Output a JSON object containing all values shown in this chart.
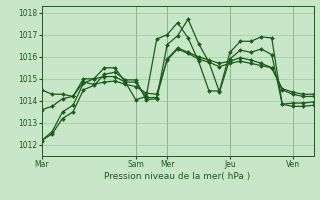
{
  "bg_color": "#c8e6c8",
  "grid_color": "#a0c8a0",
  "line_color": "#1a5c1a",
  "marker": "D",
  "marker_size": 2.0,
  "linewidth": 0.9,
  "xlabel": "Pression niveau de la mer( hPa )",
  "xlabel_fontsize": 6.5,
  "ylim": [
    1011.5,
    1018.3
  ],
  "yticks": [
    1012,
    1013,
    1014,
    1015,
    1016,
    1017,
    1018
  ],
  "tick_fontsize": 5.5,
  "day_labels": [
    "Mar",
    "Sam",
    "Mer",
    "Jeu",
    "Ven"
  ],
  "day_positions": [
    0,
    9,
    12,
    18,
    24
  ],
  "xlim": [
    0,
    26
  ],
  "series": [
    [
      1012.2,
      1012.6,
      1013.5,
      1013.8,
      1014.8,
      1015.0,
      1015.5,
      1015.5,
      1014.85,
      1014.05,
      1014.2,
      1016.8,
      1017.0,
      1017.55,
      1016.85,
      1015.8,
      1014.45,
      1014.45,
      1016.2,
      1016.7,
      1016.7,
      1016.9,
      1016.85,
      1013.85,
      1013.9,
      1013.9,
      1013.95
    ],
    [
      1013.6,
      1013.75,
      1014.1,
      1014.2,
      1014.85,
      1014.75,
      1014.85,
      1014.9,
      1014.75,
      1014.65,
      1014.35,
      1014.3,
      1015.85,
      1016.35,
      1016.15,
      1015.9,
      1015.75,
      1015.55,
      1015.7,
      1015.8,
      1015.7,
      1015.6,
      1015.5,
      1014.55,
      1014.4,
      1014.3,
      1014.3
    ],
    [
      1014.5,
      1014.3,
      1014.3,
      1014.2,
      1015.0,
      1015.0,
      1015.1,
      1015.1,
      1014.85,
      1014.85,
      1014.15,
      1014.15,
      1015.9,
      1016.4,
      1016.2,
      1016.0,
      1015.85,
      1015.7,
      1015.8,
      1015.95,
      1015.85,
      1015.7,
      1015.5,
      1014.5,
      1014.3,
      1014.2,
      1014.2
    ],
    [
      1012.2,
      1012.5,
      1013.2,
      1013.5,
      1014.5,
      1014.7,
      1015.2,
      1015.3,
      1014.95,
      1014.95,
      1014.05,
      1014.1,
      1016.55,
      1016.95,
      1017.7,
      1016.6,
      1015.75,
      1014.4,
      1015.9,
      1016.3,
      1016.2,
      1016.35,
      1016.1,
      1013.85,
      1013.75,
      1013.75,
      1013.8
    ]
  ],
  "vline_positions": [
    9,
    12,
    18,
    24
  ],
  "spine_color": "#1a5c1a"
}
